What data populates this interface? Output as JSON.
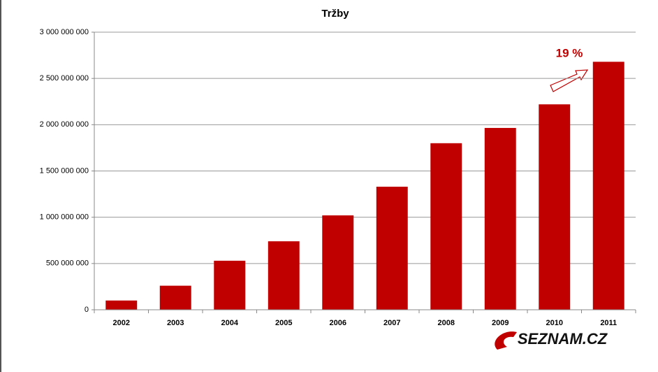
{
  "chart_data": {
    "type": "bar",
    "title": "Tržby",
    "categories": [
      "2002",
      "2003",
      "2004",
      "2005",
      "2006",
      "2007",
      "2008",
      "2009",
      "2010",
      "2011"
    ],
    "values": [
      100000000,
      260000000,
      530000000,
      740000000,
      1020000000,
      1330000000,
      1800000000,
      1965000000,
      2220000000,
      2680000000
    ],
    "color": "#c00000",
    "ylim": [
      0,
      3000000000
    ],
    "yticks": [
      0,
      {
        "value": 500000000,
        "label": "500 000 000"
      },
      {
        "value": 1000000000,
        "label": "1 000 000 000"
      },
      {
        "value": 1500000000,
        "label": "1 500 000 000"
      },
      {
        "value": 2000000000,
        "label": "2 000 000 000"
      },
      {
        "value": 2500000000,
        "label": "2 500 000 000"
      },
      {
        "value": 3000000000,
        "label": "3 000 000 000"
      }
    ],
    "grid": true,
    "annotation": "19 %",
    "logo": "SEZNAM.CZ"
  }
}
